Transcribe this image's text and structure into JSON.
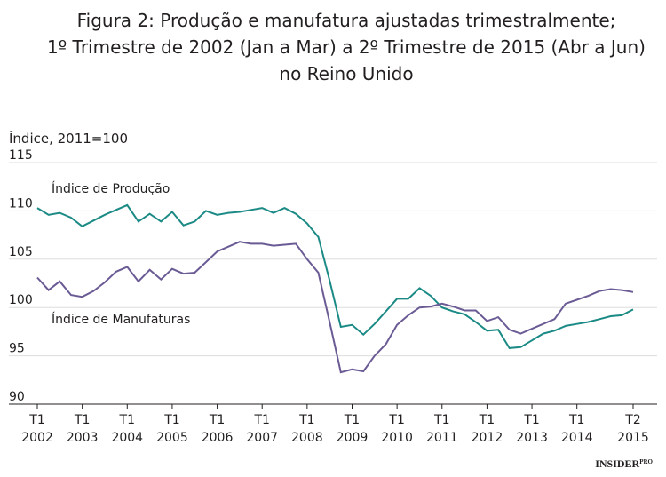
{
  "chart_data": {
    "type": "line",
    "title": [
      "Figura 2: Produção e manufatura ajustadas trimestralmente;",
      "1º Trimestre de 2002 (Jan a Mar) a 2º Trimestre de 2015 (Abr a Jun)",
      "no Reino Unido"
    ],
    "y_label": "Índice, 2011=100",
    "categories": [
      [
        "T1",
        "2002"
      ],
      null,
      null,
      null,
      [
        "T1",
        "2003"
      ],
      null,
      null,
      null,
      [
        "T1",
        "2004"
      ],
      null,
      null,
      null,
      [
        "T1",
        "2005"
      ],
      null,
      null,
      null,
      [
        "T1",
        "2006"
      ],
      null,
      null,
      null,
      [
        "T1",
        "2007"
      ],
      null,
      null,
      null,
      [
        "T1",
        "2008"
      ],
      null,
      null,
      null,
      [
        "T1",
        "2009"
      ],
      null,
      null,
      null,
      [
        "T1",
        "2010"
      ],
      null,
      null,
      null,
      [
        "T1",
        "2011"
      ],
      null,
      null,
      null,
      [
        "T1",
        "2012"
      ],
      null,
      null,
      null,
      [
        "T1",
        "2013"
      ],
      null,
      null,
      null,
      [
        "T1",
        "2014"
      ],
      null,
      null,
      null,
      null,
      [
        "T2",
        "2015"
      ]
    ],
    "series": [
      {
        "name": "Índice de Produção",
        "color": "#1b8a85",
        "values": [
          110.3,
          109.6,
          109.8,
          109.3,
          108.4,
          109.0,
          109.6,
          110.1,
          110.6,
          108.9,
          109.7,
          108.9,
          109.9,
          108.5,
          108.9,
          110.0,
          109.6,
          109.8,
          109.9,
          110.1,
          110.3,
          109.8,
          110.3,
          109.7,
          108.7,
          107.3,
          102.8,
          98.0,
          98.2,
          97.2,
          98.3,
          99.6,
          100.9,
          100.9,
          102.0,
          101.2,
          100.0,
          99.6,
          99.3,
          98.5,
          97.6,
          97.7,
          95.8,
          95.9,
          96.6,
          97.3,
          97.6,
          98.1,
          98.3,
          98.5,
          98.8,
          99.1,
          99.2,
          99.8
        ]
      },
      {
        "name": "Índice de Manufaturas",
        "color": "#6b5b95",
        "values": [
          103.1,
          101.8,
          102.7,
          101.3,
          101.1,
          101.7,
          102.6,
          103.7,
          104.2,
          102.7,
          103.9,
          102.9,
          104.0,
          103.5,
          103.6,
          104.7,
          105.8,
          106.3,
          106.8,
          106.6,
          106.6,
          106.4,
          106.5,
          106.6,
          105.0,
          103.6,
          98.5,
          93.3,
          93.6,
          93.4,
          95.0,
          96.2,
          98.2,
          99.2,
          100.0,
          100.1,
          100.4,
          100.1,
          99.7,
          99.7,
          98.6,
          99.0,
          97.7,
          97.3,
          97.8,
          98.3,
          98.8,
          100.4,
          100.8,
          101.2,
          101.7,
          101.9,
          101.8,
          101.6
        ]
      }
    ],
    "ylim": [
      90,
      115
    ],
    "yticks": [
      90,
      95,
      100,
      105,
      110,
      115
    ],
    "grid": true,
    "watermark": [
      "INSIDER",
      "PRO"
    ]
  }
}
